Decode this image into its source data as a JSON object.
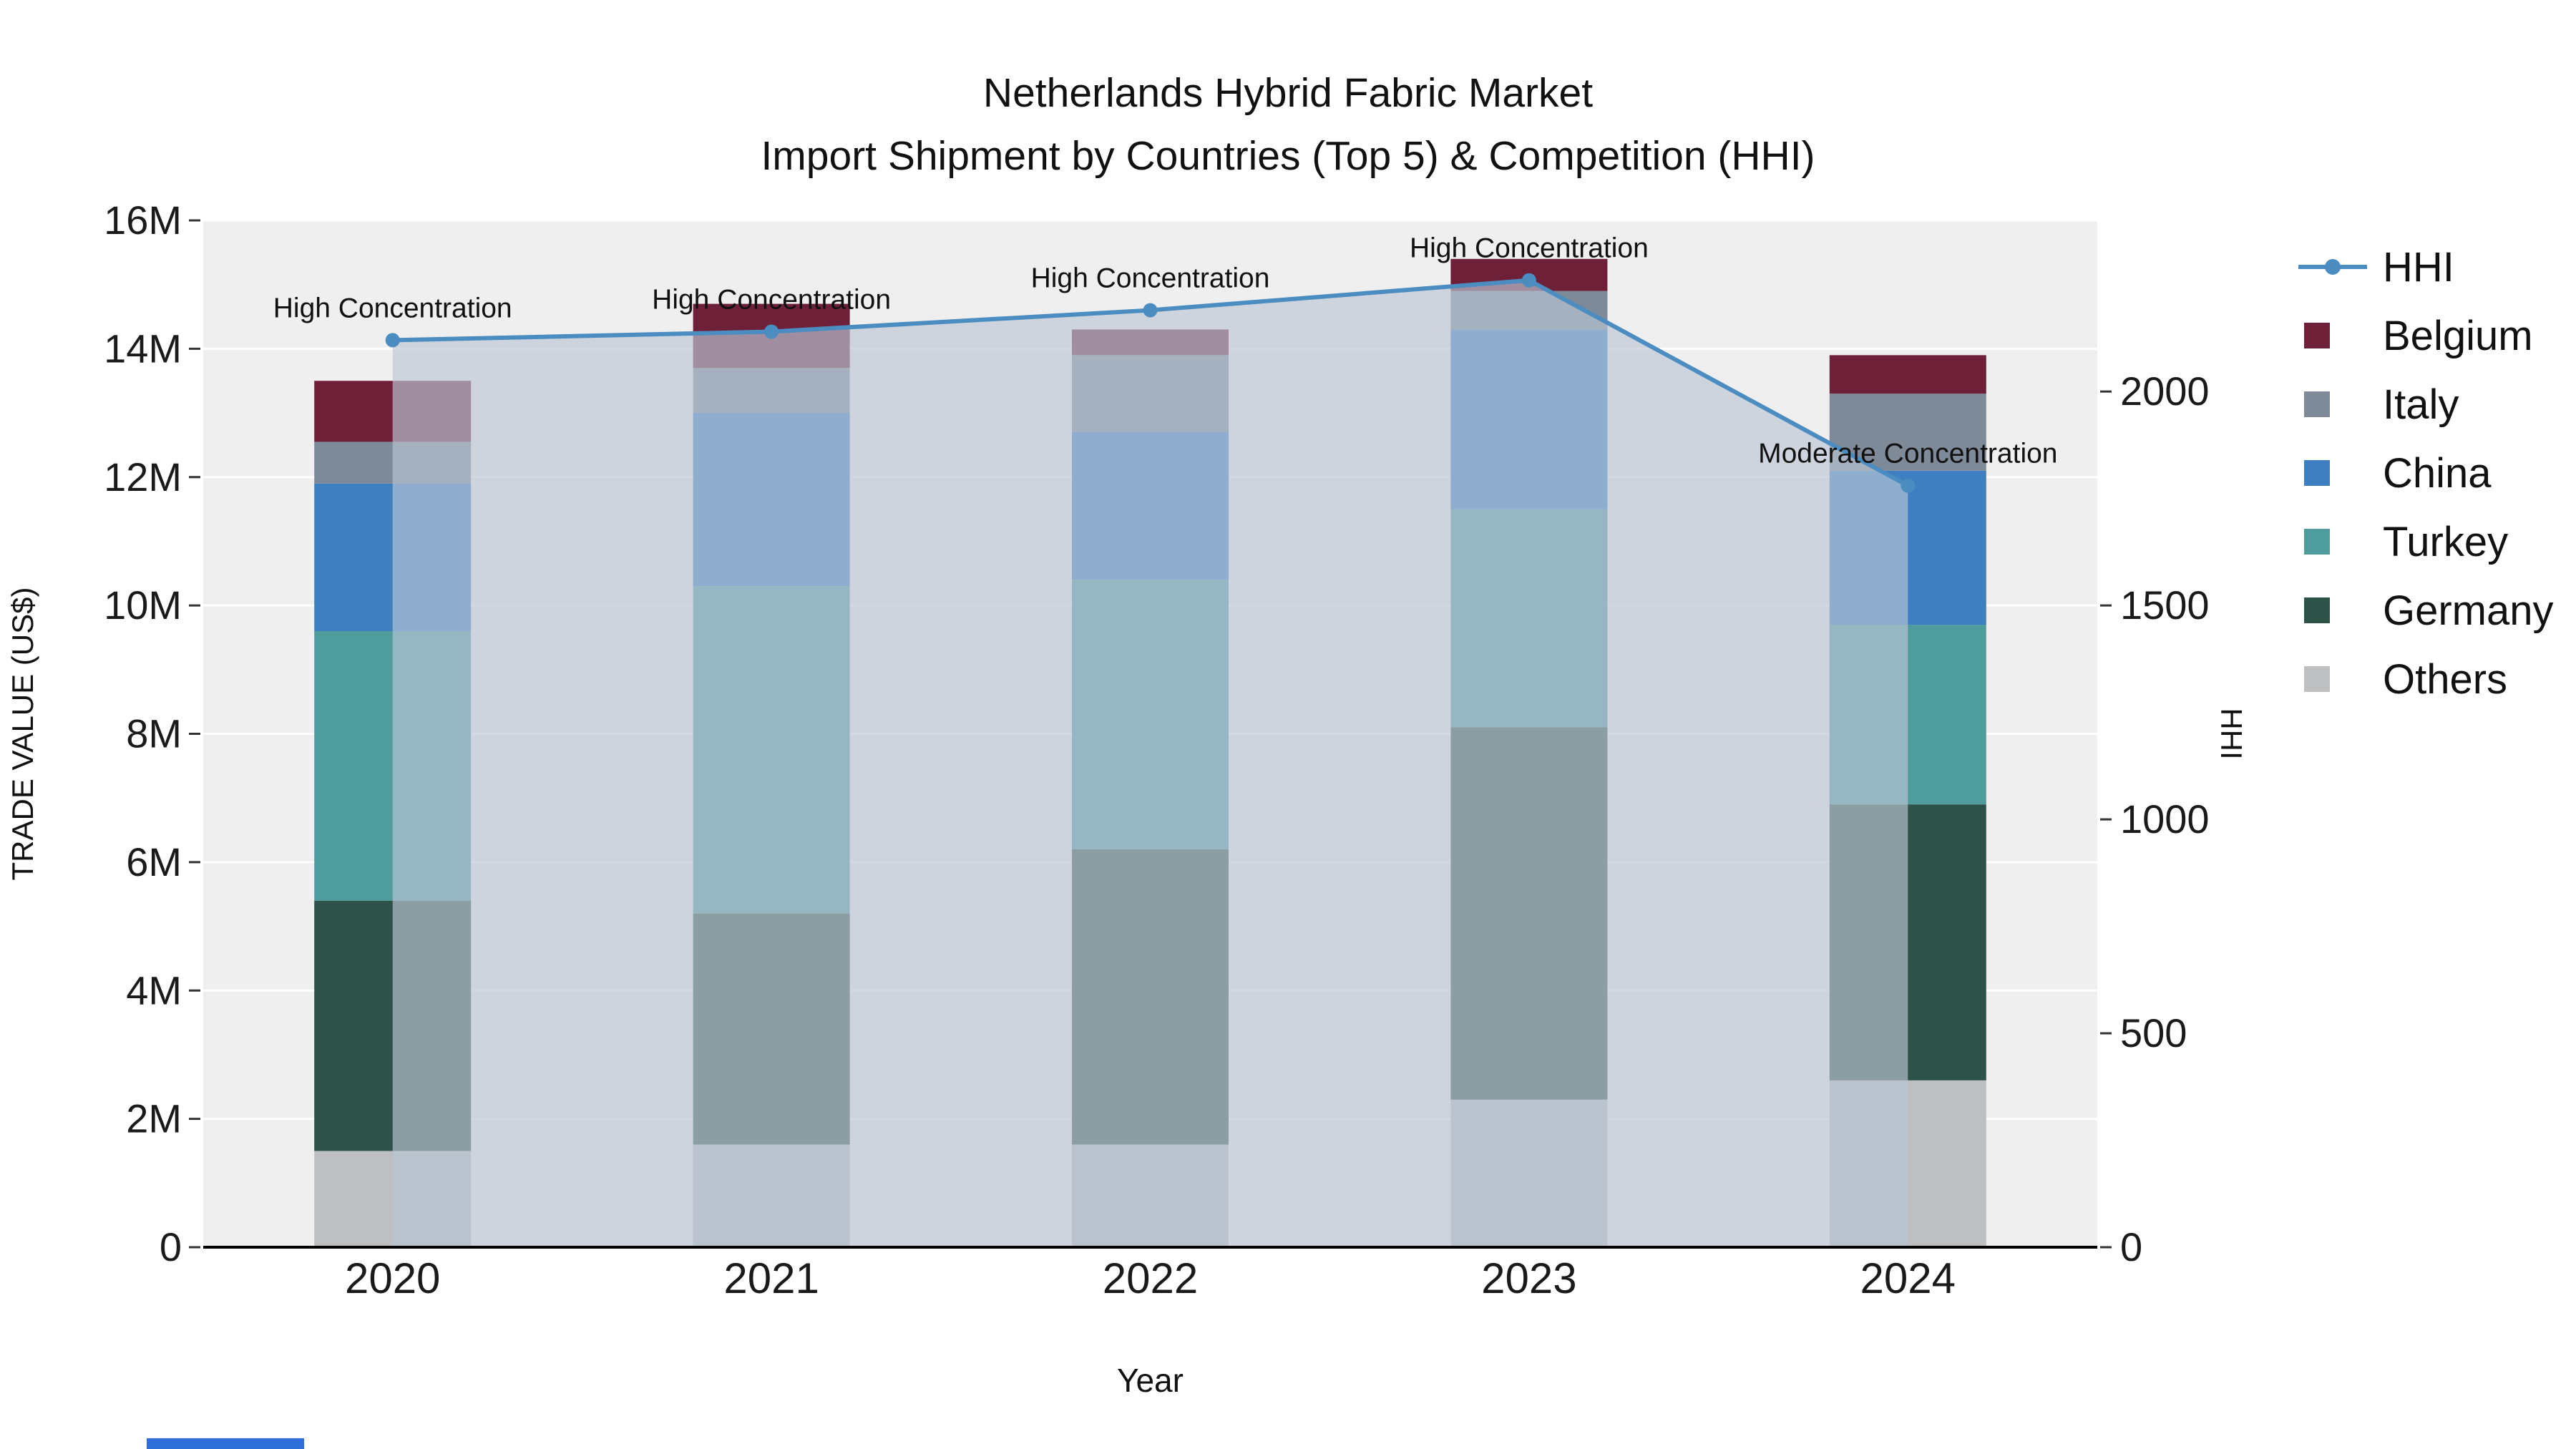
{
  "title": {
    "line1": "Netherlands Hybrid Fabric Market",
    "line2": "Import Shipment by Countries (Top 5) & Competition (HHI)"
  },
  "chart_data": {
    "type": "bar",
    "subtype": "stacked-bar-with-line-overlay",
    "title": "Netherlands Hybrid Fabric Market",
    "subtitle": "Import Shipment by Countries (Top 5) & Competition (HHI)",
    "categories": [
      "2020",
      "2021",
      "2022",
      "2023",
      "2024"
    ],
    "values_unit": "million US$",
    "series": [
      {
        "name": "Others",
        "color": "#bdbfc1",
        "values": [
          1.5,
          1.6,
          1.6,
          2.3,
          2.6
        ]
      },
      {
        "name": "Germany",
        "color": "#2d5248",
        "values": [
          3.9,
          3.6,
          4.6,
          5.8,
          4.3
        ]
      },
      {
        "name": "Turkey",
        "color": "#4f9c9d",
        "values": [
          4.2,
          5.1,
          4.2,
          3.4,
          2.8
        ]
      },
      {
        "name": "China",
        "color": "#3d7fc0",
        "values": [
          2.3,
          2.7,
          2.3,
          2.8,
          2.4
        ]
      },
      {
        "name": "Italy",
        "color": "#7e8a98",
        "values": [
          0.65,
          0.7,
          1.2,
          0.6,
          1.2
        ]
      },
      {
        "name": "Belgium",
        "color": "#6e2039",
        "values": [
          0.95,
          1.0,
          0.4,
          0.5,
          0.6
        ]
      }
    ],
    "totals_m": [
      13.5,
      14.8,
      14.3,
      15.4,
      13.9
    ],
    "hhi_line": {
      "name": "HHI",
      "axis": "right",
      "color": "#4b8dc0",
      "area_fill": "rgba(186,197,212,0.66)",
      "values": [
        2120,
        2140,
        2190,
        2260,
        1780
      ]
    },
    "annotations": [
      {
        "category": "2020",
        "text": "High Concentration"
      },
      {
        "category": "2021",
        "text": "High Concentration"
      },
      {
        "category": "2022",
        "text": "High Concentration"
      },
      {
        "category": "2023",
        "text": "High Concentration"
      },
      {
        "category": "2024",
        "text": "Moderate Concentration"
      }
    ],
    "axes": {
      "x": {
        "label": "Year"
      },
      "y_left": {
        "label": "TRADE VALUE (US$)",
        "range": [
          0,
          16
        ],
        "unit": "M",
        "ticks": [
          {
            "v": 0,
            "label": "0"
          },
          {
            "v": 2,
            "label": "2M"
          },
          {
            "v": 4,
            "label": "4M"
          },
          {
            "v": 6,
            "label": "6M"
          },
          {
            "v": 8,
            "label": "8M"
          },
          {
            "v": 10,
            "label": "10M"
          },
          {
            "v": 12,
            "label": "12M"
          },
          {
            "v": 14,
            "label": "14M"
          },
          {
            "v": 16,
            "label": "16M"
          }
        ]
      },
      "y_right": {
        "label": "HHI",
        "range": [
          0,
          2400
        ],
        "ticks": [
          {
            "v": 0,
            "label": "0"
          },
          {
            "v": 500,
            "label": "500"
          },
          {
            "v": 1000,
            "label": "1000"
          },
          {
            "v": 1500,
            "label": "1500"
          },
          {
            "v": 2000,
            "label": "2000"
          }
        ]
      }
    },
    "legend": {
      "position": "right",
      "entries": [
        {
          "label": "HHI",
          "type": "line",
          "color": "#4b8dc0"
        },
        {
          "label": "Belgium",
          "type": "square",
          "color": "#6e2039"
        },
        {
          "label": "Italy",
          "type": "square",
          "color": "#7e8a98"
        },
        {
          "label": "China",
          "type": "square",
          "color": "#3d7fc0"
        },
        {
          "label": "Turkey",
          "type": "square",
          "color": "#4f9c9d"
        },
        {
          "label": "Germany",
          "type": "square",
          "color": "#2d5248"
        },
        {
          "label": "Others",
          "type": "square",
          "color": "#bdbfc1"
        }
      ]
    },
    "plot_style": {
      "background": "#efefef",
      "gridline_color": "#ffffff"
    }
  }
}
